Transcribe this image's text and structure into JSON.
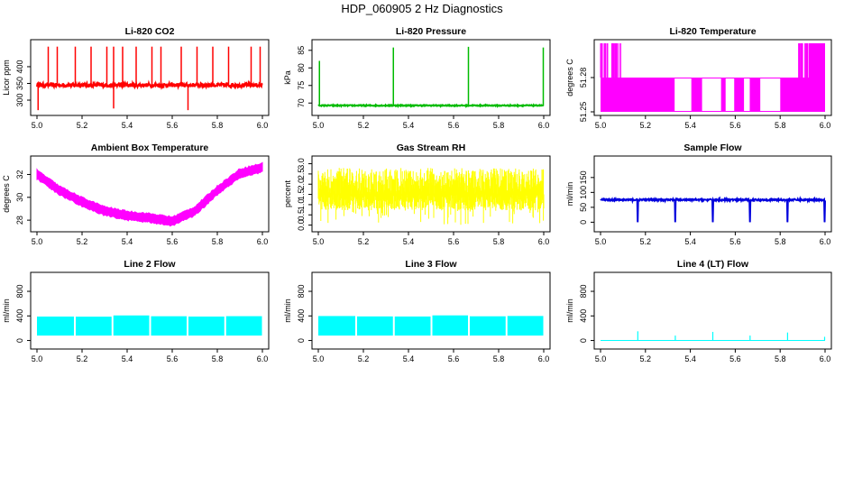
{
  "main_title": "HDP_060905 2 Hz Diagnostics",
  "chart_data": [
    {
      "type": "line",
      "title": "Li-820 CO2",
      "ylabel": "Licor ppm",
      "color": "#ff0000",
      "xlim": [
        5.0,
        6.0
      ],
      "ylim": [
        265,
        470
      ],
      "xticks": [
        "5.0",
        "5.2",
        "5.4",
        "5.6",
        "5.8",
        "6.0"
      ],
      "yticks": [
        300,
        350,
        400
      ],
      "baseline": 345,
      "noise": 6,
      "spikes": [
        {
          "x": 5.05,
          "y": 460
        },
        {
          "x": 5.09,
          "y": 460
        },
        {
          "x": 5.17,
          "y": 460
        },
        {
          "x": 5.24,
          "y": 460
        },
        {
          "x": 5.31,
          "y": 460
        },
        {
          "x": 5.34,
          "y": 460
        },
        {
          "x": 5.38,
          "y": 460
        },
        {
          "x": 5.44,
          "y": 460
        },
        {
          "x": 5.51,
          "y": 460
        },
        {
          "x": 5.55,
          "y": 460
        },
        {
          "x": 5.64,
          "y": 460
        },
        {
          "x": 5.71,
          "y": 460
        },
        {
          "x": 5.78,
          "y": 460
        },
        {
          "x": 5.85,
          "y": 460
        },
        {
          "x": 5.95,
          "y": 460
        },
        {
          "x": 5.99,
          "y": 460
        },
        {
          "x": 5.005,
          "y": 270
        },
        {
          "x": 5.34,
          "y": 275
        },
        {
          "x": 5.67,
          "y": 270
        }
      ]
    },
    {
      "type": "line",
      "title": "Li-820 Pressure",
      "ylabel": "kPa",
      "color": "#00bb00",
      "xlim": [
        5.0,
        6.0
      ],
      "ylim": [
        67.5,
        87
      ],
      "xticks": [
        "5.0",
        "5.2",
        "5.4",
        "5.6",
        "5.8",
        "6.0"
      ],
      "yticks": [
        70,
        75,
        80,
        85
      ],
      "baseline": 69.3,
      "noise": 0.15,
      "spikes": [
        {
          "x": 5.005,
          "y": 82
        },
        {
          "x": 5.333,
          "y": 85.8
        },
        {
          "x": 5.666,
          "y": 86
        },
        {
          "x": 5.998,
          "y": 85.8
        }
      ]
    },
    {
      "type": "line",
      "title": "Li-820 Temperature",
      "ylabel": "degrees C",
      "color": "#ff00ff",
      "xlim": [
        5.0,
        6.0
      ],
      "ylim": [
        51.25,
        51.31
      ],
      "xticks": [
        "5.0",
        "5.2",
        "5.4",
        "5.6",
        "5.8",
        "6.0"
      ],
      "yticks": [
        51.25,
        51.28
      ],
      "ytick_labels": [
        "51.25",
        "51.28"
      ],
      "low": 51.25,
      "mid": 51.28,
      "high": 51.31
    },
    {
      "type": "line",
      "title": "Ambient Box Temperature",
      "ylabel": "degrees C",
      "color": "#ff00ff",
      "xlim": [
        5.0,
        6.0
      ],
      "ylim": [
        27.3,
        33.3
      ],
      "xticks": [
        "5.0",
        "5.2",
        "5.4",
        "5.6",
        "5.8",
        "6.0"
      ],
      "yticks": [
        28,
        30,
        32
      ],
      "curve": [
        {
          "x": 5.0,
          "y": 32.0
        },
        {
          "x": 5.1,
          "y": 30.6
        },
        {
          "x": 5.2,
          "y": 29.6
        },
        {
          "x": 5.3,
          "y": 28.8
        },
        {
          "x": 5.4,
          "y": 28.4
        },
        {
          "x": 5.5,
          "y": 28.2
        },
        {
          "x": 5.6,
          "y": 27.9
        },
        {
          "x": 5.7,
          "y": 28.8
        },
        {
          "x": 5.8,
          "y": 30.6
        },
        {
          "x": 5.9,
          "y": 32.1
        },
        {
          "x": 6.0,
          "y": 32.6
        }
      ],
      "band": 0.6
    },
    {
      "type": "line",
      "title": "Gas Stream RH",
      "ylabel": "percent",
      "color": "#ffff00",
      "xlim": [
        5.0,
        6.0
      ],
      "ylim": [
        -0.15,
        3.2
      ],
      "xticks": [
        "5.0",
        "5.2",
        "5.4",
        "5.6",
        "5.8",
        "6.0"
      ],
      "yticks": [
        0.0,
        0.5,
        1.0,
        1.5,
        2.0,
        2.5,
        3.0
      ],
      "ytick_labels": [
        "0.0",
        "0.5",
        "1.0",
        "1.5",
        "2.0",
        "2.5",
        "3.0"
      ],
      "center": 1.5,
      "spread": 1.3
    },
    {
      "type": "line",
      "title": "Sample Flow",
      "ylabel": "ml/min",
      "color": "#0000dd",
      "xlim": [
        5.0,
        6.0
      ],
      "ylim": [
        -20,
        210
      ],
      "xticks": [
        "5.0",
        "5.2",
        "5.4",
        "5.6",
        "5.8",
        "6.0"
      ],
      "yticks": [
        0,
        50,
        100,
        150
      ],
      "baseline": 75,
      "noise": 3,
      "dips": [
        5.166,
        5.333,
        5.5,
        5.666,
        5.833,
        5.998
      ]
    },
    {
      "type": "line",
      "title": "Line 2 Flow",
      "ylabel": "ml/min",
      "color": "#00ffff",
      "xlim": [
        5.0,
        6.0
      ],
      "ylim": [
        -80,
        1050
      ],
      "xticks": [
        "5.0",
        "5.2",
        "5.4",
        "5.6",
        "5.8",
        "6.0"
      ],
      "yticks": [
        0,
        400,
        800
      ],
      "band_low": 80,
      "band_high": 400,
      "breaks": [
        5.166,
        5.333,
        5.5,
        5.666,
        5.833
      ]
    },
    {
      "type": "line",
      "title": "Line 3 Flow",
      "ylabel": "ml/min",
      "color": "#00ffff",
      "xlim": [
        5.0,
        6.0
      ],
      "ylim": [
        -80,
        1050
      ],
      "xticks": [
        "5.0",
        "5.2",
        "5.4",
        "5.6",
        "5.8",
        "6.0"
      ],
      "yticks": [
        0,
        400,
        800
      ],
      "band_low": 80,
      "band_high": 400,
      "breaks": [
        5.166,
        5.333,
        5.5,
        5.666,
        5.833
      ]
    },
    {
      "type": "line",
      "title": "Line 4 (LT) Flow",
      "ylabel": "ml/min",
      "color": "#00ffff",
      "xlim": [
        5.0,
        6.0
      ],
      "ylim": [
        -80,
        1050
      ],
      "xticks": [
        "5.0",
        "5.2",
        "5.4",
        "5.6",
        "5.8",
        "6.0"
      ],
      "yticks": [
        0,
        400,
        800
      ],
      "baseline": 0,
      "spikes": [
        {
          "x": 5.166,
          "y": 150
        },
        {
          "x": 5.333,
          "y": 80
        },
        {
          "x": 5.5,
          "y": 140
        },
        {
          "x": 5.666,
          "y": 80
        },
        {
          "x": 5.833,
          "y": 130
        },
        {
          "x": 5.998,
          "y": 60
        }
      ]
    }
  ]
}
